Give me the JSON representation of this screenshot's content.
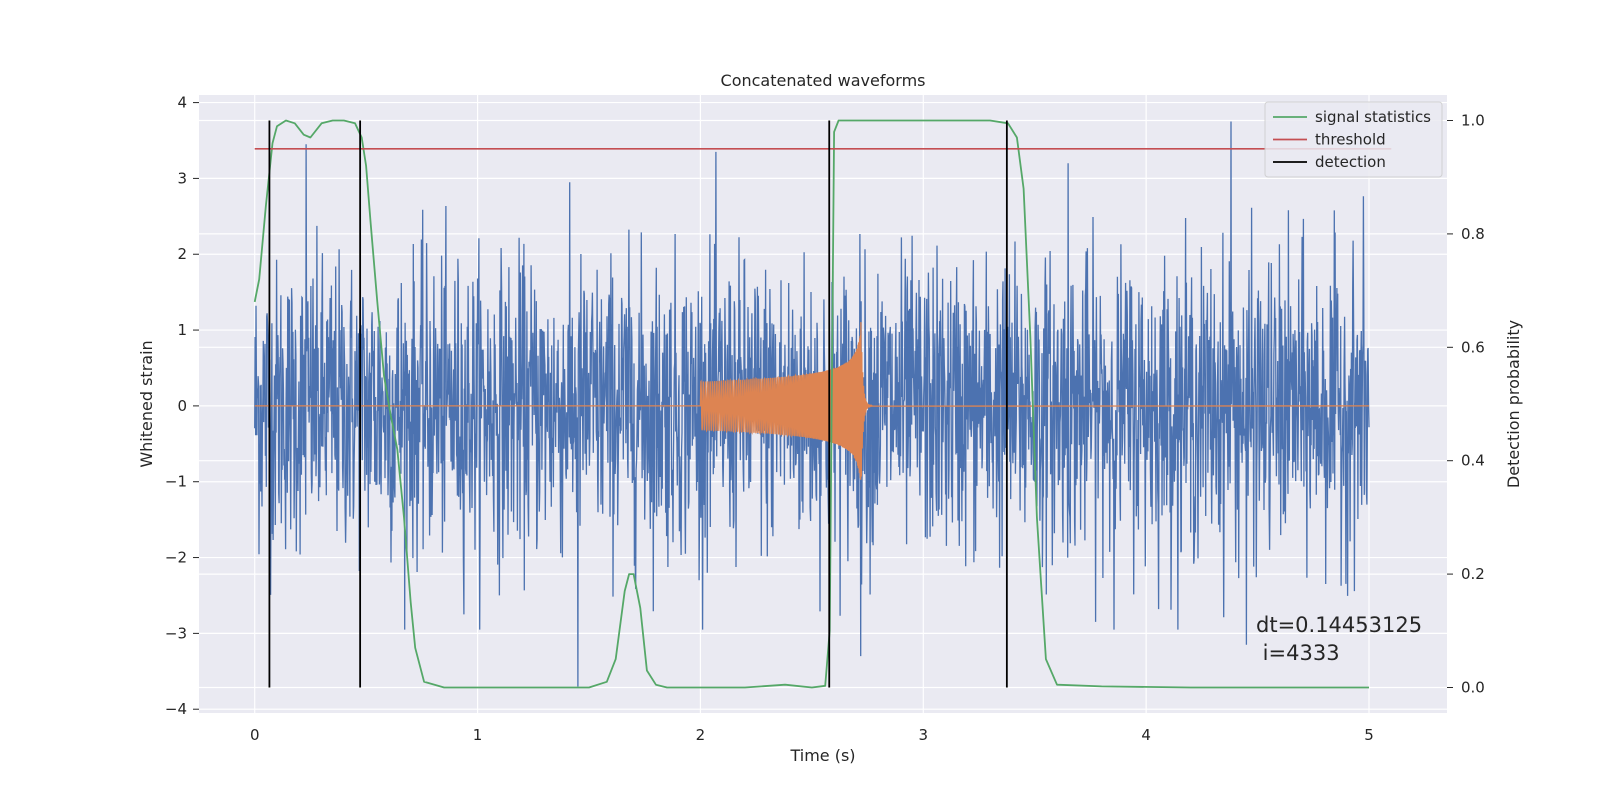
{
  "chart_data": {
    "type": "line",
    "title": "Concatenated waveforms",
    "xlabel": "Time (s)",
    "ylabel_left": "Whitened strain",
    "ylabel_right": "Detection probability",
    "xlim": [
      -0.25,
      5.35
    ],
    "ylim_left": [
      -4.05,
      4.1
    ],
    "ylim_right": [
      -0.045,
      1.045
    ],
    "grid": true,
    "legend_position": "top-right",
    "x_ticks": [
      "0",
      "1",
      "2",
      "3",
      "4",
      "5"
    ],
    "x_tick_values": [
      0,
      1,
      2,
      3,
      4,
      5
    ],
    "y_ticks_left": [
      "4",
      "3",
      "2",
      "1",
      "0",
      "−1",
      "−2",
      "−3",
      "−4"
    ],
    "y_tick_values_left": [
      4,
      3,
      2,
      1,
      0,
      -1,
      -2,
      -3,
      -4
    ],
    "y_ticks_right": [
      "1.0",
      "0.8",
      "0.6",
      "0.4",
      "0.2",
      "0.0"
    ],
    "y_tick_values_right": [
      1.0,
      0.8,
      0.6,
      0.4,
      0.2,
      0.0
    ],
    "series": [
      {
        "name": "",
        "axis": "left",
        "color": "#4c72b0",
        "kind": "noise",
        "x_range": [
          0,
          5
        ],
        "envelope_typical": 2.0,
        "notable_points": [
          {
            "x": 0.23,
            "y": 3.45
          },
          {
            "x": 1.45,
            "y": -3.7
          },
          {
            "x": 2.07,
            "y": 3.35
          },
          {
            "x": 2.72,
            "y": -3.3
          },
          {
            "x": 3.65,
            "y": 3.2
          },
          {
            "x": 4.38,
            "y": 3.75
          },
          {
            "x": 4.45,
            "y": -3.15
          }
        ]
      },
      {
        "name": "",
        "axis": "left",
        "color": "#dd8452",
        "kind": "chirp",
        "x_range": [
          0,
          5
        ],
        "chirp_start": 2.0,
        "chirp_peak": 2.72,
        "amplitude_start": 0.32,
        "amplitude_peak": 1.2
      },
      {
        "name": "signal statistics",
        "axis": "right",
        "color": "#55a868",
        "x": [
          0,
          0.02,
          0.05,
          0.08,
          0.1,
          0.14,
          0.18,
          0.22,
          0.25,
          0.3,
          0.35,
          0.4,
          0.45,
          0.48,
          0.5,
          0.52,
          0.55,
          0.58,
          0.61,
          0.64,
          0.67,
          0.7,
          0.72,
          0.76,
          0.85,
          1.0,
          1.5,
          1.58,
          1.62,
          1.66,
          1.68,
          1.7,
          1.73,
          1.76,
          1.8,
          1.85,
          2.0,
          2.2,
          2.38,
          2.5,
          2.56,
          2.58,
          2.6,
          2.62,
          2.65,
          2.7,
          3.0,
          3.3,
          3.38,
          3.42,
          3.45,
          3.48,
          3.51,
          3.55,
          3.6,
          3.8,
          4.2,
          5.0
        ],
        "y": [
          0.68,
          0.72,
          0.85,
          0.96,
          0.99,
          1.0,
          0.995,
          0.975,
          0.97,
          0.995,
          1.0,
          1.0,
          0.995,
          0.97,
          0.92,
          0.82,
          0.68,
          0.55,
          0.48,
          0.42,
          0.3,
          0.15,
          0.07,
          0.01,
          0.0,
          0.0,
          0.0,
          0.01,
          0.05,
          0.17,
          0.2,
          0.2,
          0.14,
          0.03,
          0.005,
          0.0,
          0.0,
          0.0,
          0.005,
          0.0,
          0.003,
          0.1,
          0.98,
          1.0,
          1.0,
          1.0,
          1.0,
          1.0,
          0.995,
          0.97,
          0.88,
          0.62,
          0.3,
          0.05,
          0.005,
          0.002,
          0.0,
          0.0
        ]
      },
      {
        "name": "threshold",
        "axis": "right",
        "color": "#c44e52",
        "x": [
          0,
          5.1
        ],
        "y": [
          0.95,
          0.95
        ]
      },
      {
        "name": "detection",
        "axis": "right",
        "color": "#000000",
        "kind": "vlines",
        "x": [
          0.066,
          0.473,
          2.578,
          3.375
        ],
        "y_range": [
          0.0,
          1.0
        ]
      }
    ],
    "annotations": [
      "dt=0.14453125",
      " i=4333"
    ]
  }
}
